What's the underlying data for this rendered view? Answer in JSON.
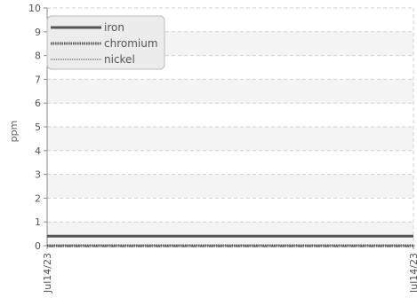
{
  "chart_data": {
    "type": "line",
    "ylabel": "ppm",
    "xlabel": "",
    "ylim": [
      0,
      10
    ],
    "yticks": [
      "0",
      "1",
      "2",
      "3",
      "4",
      "5",
      "6",
      "7",
      "8",
      "9",
      "10"
    ],
    "x": [
      "Jul14/23",
      "Jul14/23"
    ],
    "grid": true,
    "legend_position": "top-left",
    "series": [
      {
        "name": "iron",
        "values": [
          0.4,
          0.4
        ],
        "style": "solid",
        "color": "#555555"
      },
      {
        "name": "chromium",
        "values": [
          0,
          0
        ],
        "style": "dotted",
        "color": "#555555"
      },
      {
        "name": "nickel",
        "values": [
          0,
          0
        ],
        "style": "dotted-thin",
        "color": "#777777"
      }
    ]
  }
}
